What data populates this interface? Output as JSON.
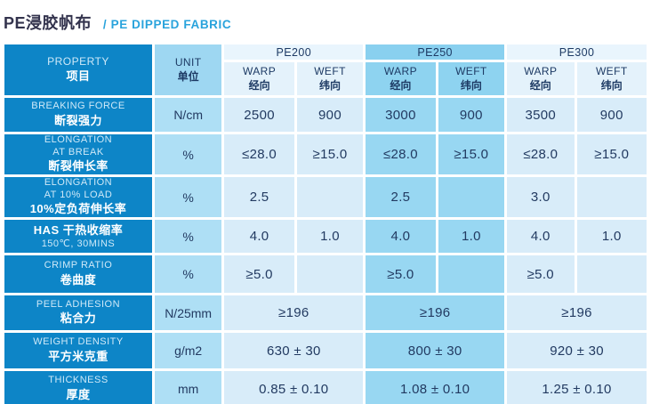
{
  "page_title": {
    "zh": "PE浸胶帆布",
    "en_suffix": "/ PE DIPPED FABRIC"
  },
  "colors": {
    "accent_dark_blue": "#0d85c7",
    "unit_column_blue": "#aedff5",
    "group_light_blue": "#d8ecf9",
    "group_medium_blue": "#98d7f2",
    "value_text_navy": "#223a61",
    "title_en_blue": "#29a3dc"
  },
  "table": {
    "property_header": {
      "en": "PROPERTY",
      "zh": "项目"
    },
    "unit_header": {
      "en": "UNIT",
      "zh": "单位"
    },
    "groups": [
      {
        "key": "pe200",
        "label": "PE200",
        "tone": "light",
        "subcols": [
          {
            "key": "warp",
            "en": "WARP",
            "zh": "经向"
          },
          {
            "key": "weft",
            "en": "WEFT",
            "zh": "纬向"
          }
        ]
      },
      {
        "key": "pe250",
        "label": "PE250",
        "tone": "med",
        "subcols": [
          {
            "key": "warp",
            "en": "WARP",
            "zh": "经向"
          },
          {
            "key": "weft",
            "en": "WEFT",
            "zh": "纬向"
          }
        ]
      },
      {
        "key": "pe300",
        "label": "PE300",
        "tone": "light",
        "subcols": [
          {
            "key": "warp",
            "en": "WARP",
            "zh": "经向"
          },
          {
            "key": "weft",
            "en": "WEFT",
            "zh": "纬向"
          }
        ]
      }
    ],
    "rows": [
      {
        "key": "breaking-force",
        "lines": [
          {
            "t": "BREAKING FORCE",
            "s": "en"
          },
          {
            "t": "断裂强力",
            "s": "zh"
          }
        ],
        "unit": "N/cm",
        "span": false,
        "values": [
          "2500",
          "900",
          "3000",
          "900",
          "3500",
          "900"
        ]
      },
      {
        "key": "elongation-at-break",
        "lines": [
          {
            "t": "ELONGATION",
            "s": "en"
          },
          {
            "t": "AT BREAK",
            "s": "en"
          },
          {
            "t": "断裂伸长率",
            "s": "zh"
          }
        ],
        "unit": "%",
        "span": false,
        "values": [
          "≤28.0",
          "≥15.0",
          "≤28.0",
          "≥15.0",
          "≤28.0",
          "≥15.0"
        ]
      },
      {
        "key": "elongation-at-10-load",
        "lines": [
          {
            "t": "ELONGATION",
            "s": "en"
          },
          {
            "t": "AT 10% LOAD",
            "s": "en"
          },
          {
            "t": "10%定负荷伸长率",
            "s": "zh"
          }
        ],
        "unit": "%",
        "span": false,
        "values": [
          "2.5",
          "",
          "2.5",
          "",
          "3.0",
          ""
        ]
      },
      {
        "key": "has",
        "lines": [
          {
            "t": "HAS  干热收缩率",
            "s": "zh"
          },
          {
            "t": "150℃, 30MINS",
            "s": "en"
          }
        ],
        "unit": "%",
        "span": false,
        "values": [
          "4.0",
          "1.0",
          "4.0",
          "1.0",
          "4.0",
          "1.0"
        ]
      },
      {
        "key": "crimp-ratio",
        "lines": [
          {
            "t": "CRIMP RATIO",
            "s": "en"
          },
          {
            "t": "卷曲度",
            "s": "zh"
          }
        ],
        "unit": "%",
        "span": false,
        "values": [
          "≥5.0",
          "",
          "≥5.0",
          "",
          "≥5.0",
          ""
        ]
      },
      {
        "key": "peel-adhesion",
        "lines": [
          {
            "t": "PEEL ADHESION",
            "s": "en"
          },
          {
            "t": "粘合力",
            "s": "zh"
          }
        ],
        "unit": "N/25mm",
        "span": true,
        "values": [
          "≥196",
          "≥196",
          "≥196"
        ]
      },
      {
        "key": "weight-density",
        "lines": [
          {
            "t": "WEIGHT DENSITY",
            "s": "en"
          },
          {
            "t": "平方米克重",
            "s": "zh"
          }
        ],
        "unit": "g/m2",
        "span": true,
        "values": [
          "630 ± 30",
          "800 ± 30",
          "920 ± 30"
        ]
      },
      {
        "key": "thickness",
        "lines": [
          {
            "t": "THICKNESS",
            "s": "en"
          },
          {
            "t": "厚度",
            "s": "zh"
          }
        ],
        "unit": "mm",
        "span": true,
        "values": [
          "0.85 ± 0.10",
          "1.08 ± 0.10",
          "1.25 ± 0.10"
        ]
      }
    ]
  }
}
